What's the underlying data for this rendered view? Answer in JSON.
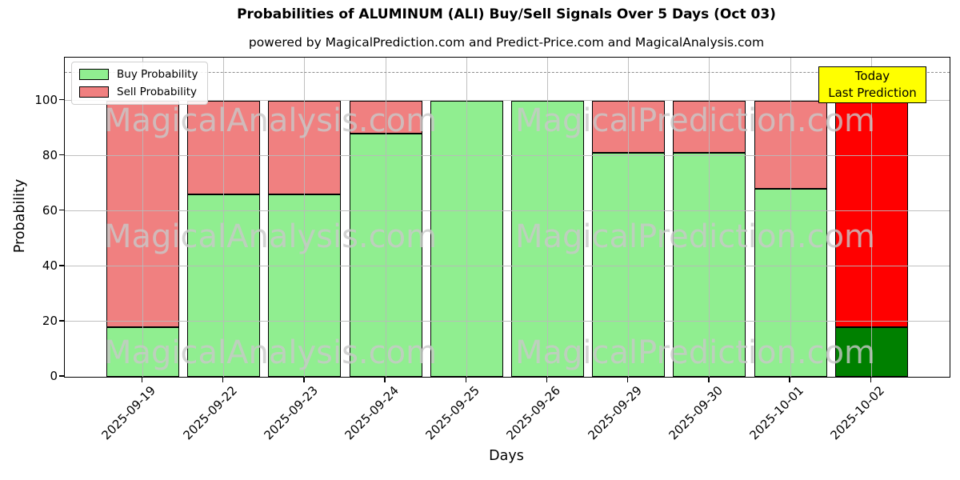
{
  "title": "Probabilities of ALUMINUM (ALI) Buy/Sell Signals Over 5 Days (Oct 03)",
  "subtitle": "powered by MagicalPrediction.com and Predict-Price.com and MagicalAnalysis.com",
  "legend": [
    {
      "label": "Buy Probability",
      "color": "#90EE90"
    },
    {
      "label": "Sell Probability",
      "color": "#F08080"
    }
  ],
  "annotation_box": {
    "line1": "Today",
    "line2": "Last Prediction",
    "bg_color": "#ffff00"
  },
  "watermarks": {
    "left_text": "MagicalAnalysis.com",
    "right_text": "MagicalPrediction.com"
  },
  "chart_data": {
    "type": "bar",
    "stacked": true,
    "title": "Probabilities of ALUMINUM (ALI) Buy/Sell Signals Over 5 Days (Oct 03)",
    "xlabel": "Days",
    "ylabel": "Probability",
    "categories": [
      "2025-09-19",
      "2025-09-22",
      "2025-09-23",
      "2025-09-24",
      "2025-09-25",
      "2025-09-26",
      "2025-09-29",
      "2025-09-30",
      "2025-10-01",
      "2025-10-02"
    ],
    "series": [
      {
        "name": "Buy Probability",
        "color": "#90EE90",
        "values": [
          18,
          66,
          66,
          88,
          100,
          100,
          81,
          81,
          68,
          18
        ]
      },
      {
        "name": "Sell Probability",
        "color": "#F08080",
        "values": [
          82,
          34,
          34,
          12,
          0,
          0,
          19,
          19,
          32,
          82
        ]
      }
    ],
    "last_bar_colors": {
      "buy": "#008000",
      "sell": "#ff0000"
    },
    "yticks": [
      0,
      20,
      40,
      60,
      80,
      100
    ],
    "ylim": [
      0,
      115.5
    ],
    "threshold_line": {
      "y": 110,
      "style": "dashed",
      "color": "#8f8f8f"
    },
    "grid": true,
    "legend_position": "upper left",
    "bar_edge_color": "#000000"
  }
}
